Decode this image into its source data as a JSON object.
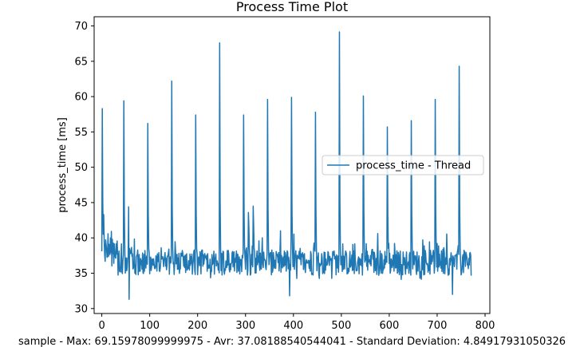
{
  "chart_data": {
    "type": "line",
    "title": "Process Time Plot",
    "xlabel": "sample - Max: 69.15978099999975 - Avr: 37.08188540544041 - Standard Deviation: 4.84917931050326",
    "ylabel": "process_time [ms]",
    "xlim": [
      -16,
      810
    ],
    "ylim": [
      29.3,
      71.3
    ],
    "xticks": [
      0,
      100,
      200,
      300,
      400,
      500,
      600,
      700,
      800
    ],
    "yticks": [
      30,
      35,
      40,
      45,
      50,
      55,
      60,
      65,
      70
    ],
    "grid": false,
    "legend_position": "center-right",
    "colors": {
      "line": "#1f77b4"
    },
    "series": [
      {
        "name": "process_time - Thread",
        "n_samples": 772,
        "base_level": 36.5,
        "spikes": [
          {
            "x": 1,
            "y": 58.3
          },
          {
            "x": 46,
            "y": 59.4
          },
          {
            "x": 56,
            "y": 44.4
          },
          {
            "x": 96,
            "y": 56.2
          },
          {
            "x": 146,
            "y": 62.2
          },
          {
            "x": 196,
            "y": 57.4
          },
          {
            "x": 246,
            "y": 67.6
          },
          {
            "x": 296,
            "y": 57.4
          },
          {
            "x": 306,
            "y": 43.6
          },
          {
            "x": 316,
            "y": 44.5
          },
          {
            "x": 346,
            "y": 59.6
          },
          {
            "x": 396,
            "y": 59.9
          },
          {
            "x": 446,
            "y": 57.8
          },
          {
            "x": 496,
            "y": 69.16
          },
          {
            "x": 546,
            "y": 60.1
          },
          {
            "x": 596,
            "y": 55.7
          },
          {
            "x": 646,
            "y": 56.6
          },
          {
            "x": 696,
            "y": 59.6
          },
          {
            "x": 746,
            "y": 64.3
          }
        ],
        "min_points": [
          {
            "x": 57,
            "y": 31.3
          },
          {
            "x": 392,
            "y": 31.8
          },
          {
            "x": 732,
            "y": 32.0
          }
        ]
      }
    ]
  }
}
